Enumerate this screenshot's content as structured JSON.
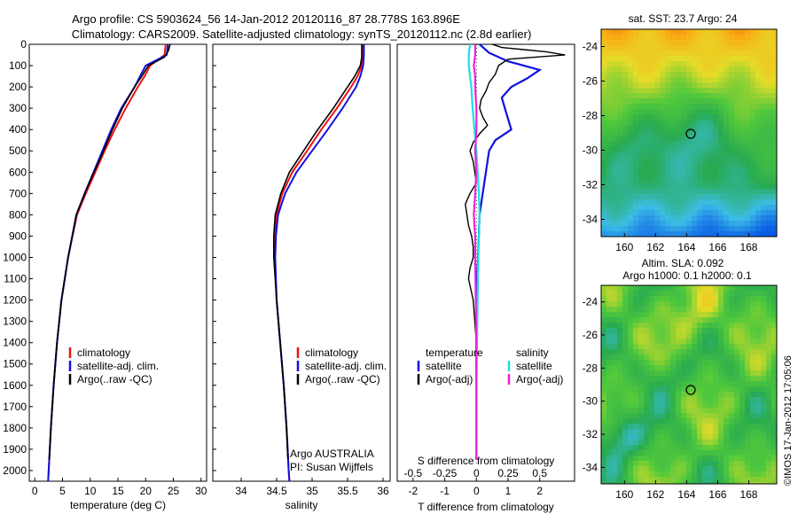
{
  "header": {
    "title_line1": "Argo profile: CS 5903624_56 14-Jan-2012 20120116_87 28.778S 163.896E",
    "title_line2": "Climatology: CARS2009. Satellite-adjusted climatology: synTS_20120112.nc (2.8d earlier)"
  },
  "footer": {
    "stamp": "©IMOS 17-Jan-2012 17:05:06"
  },
  "colors": {
    "climatology": "#ee1111",
    "satellite": "#1111dd",
    "argo": "#000000",
    "salinity_satellite": "#22dddd",
    "salinity_argo": "#ee22dd"
  },
  "chart_data": [
    {
      "id": "temperature",
      "type": "line",
      "xlabel": "temperature (deg C)",
      "xlim": [
        -1,
        31
      ],
      "ylim": [
        2050,
        0
      ],
      "xticks": [
        "0",
        "5",
        "10",
        "15",
        "20",
        "25",
        "30"
      ],
      "yticks": [
        "0",
        "100",
        "200",
        "300",
        "400",
        "500",
        "600",
        "700",
        "800",
        "900",
        "1000",
        "1100",
        "1200",
        "1300",
        "1400",
        "1500",
        "1600",
        "1700",
        "1800",
        "1900",
        "2000"
      ],
      "legend": [
        "climatology",
        "satellite-adj. clim.",
        "Argo(..raw -QC)"
      ],
      "series": [
        {
          "key": "climatology",
          "depth": [
            0,
            50,
            100,
            150,
            200,
            300,
            400,
            500,
            600,
            700,
            800,
            1000,
            1200,
            1400,
            1600,
            1800,
            2000,
            2050
          ],
          "values": [
            23.6,
            23.4,
            20.8,
            19.8,
            18.6,
            16.4,
            14.4,
            12.6,
            10.9,
            9.2,
            7.6,
            6.0,
            4.8,
            4.0,
            3.4,
            2.9,
            2.5,
            2.4
          ]
        },
        {
          "key": "satellite",
          "depth": [
            0,
            50,
            100,
            150,
            200,
            300,
            400,
            500,
            600,
            700,
            800,
            1000,
            1200,
            1400,
            1600,
            1800,
            2000,
            2050
          ],
          "values": [
            24.0,
            23.8,
            20.0,
            19.0,
            18.0,
            15.6,
            13.8,
            12.2,
            10.6,
            9.0,
            7.5,
            6.0,
            4.8,
            4.0,
            3.4,
            2.9,
            2.5,
            2.4
          ]
        },
        {
          "key": "argo",
          "depth": [
            0,
            30,
            60,
            100,
            150,
            200,
            300,
            400,
            500,
            600,
            700,
            800,
            1000,
            1200,
            1400,
            1600,
            1800,
            1950
          ],
          "values": [
            24.4,
            24.1,
            23.4,
            20.5,
            19.3,
            18.0,
            15.8,
            14.0,
            12.4,
            10.7,
            9.0,
            7.5,
            6.0,
            4.8,
            4.0,
            3.4,
            2.9,
            2.6
          ]
        }
      ]
    },
    {
      "id": "salinity",
      "type": "line",
      "xlabel": "salinity",
      "xlim": [
        33.6,
        36.1
      ],
      "ylim": [
        2050,
        0
      ],
      "xticks": [
        "34",
        "34.5",
        "35",
        "35.5",
        "36"
      ],
      "legend": [
        "climatology",
        "satellite-adj. clim.",
        "Argo(..raw -QC)"
      ],
      "annotation": [
        "Argo AUSTRALIA",
        "PI: Susan Wijffels"
      ],
      "series": [
        {
          "key": "climatology",
          "depth": [
            0,
            50,
            100,
            150,
            200,
            300,
            400,
            500,
            600,
            700,
            800,
            900,
            1000,
            1200,
            1400,
            1600,
            1800,
            2000,
            2050
          ],
          "values": [
            35.72,
            35.72,
            35.7,
            35.64,
            35.55,
            35.35,
            35.13,
            34.93,
            34.72,
            34.58,
            34.5,
            34.48,
            34.47,
            34.5,
            34.55,
            34.6,
            34.64,
            34.67,
            34.68
          ]
        },
        {
          "key": "satellite",
          "depth": [
            0,
            50,
            100,
            150,
            200,
            300,
            400,
            500,
            600,
            700,
            800,
            900,
            1000,
            1200,
            1400,
            1600,
            1800,
            2000,
            2050
          ],
          "values": [
            35.73,
            35.73,
            35.72,
            35.68,
            35.62,
            35.43,
            35.22,
            35.0,
            34.78,
            34.62,
            34.52,
            34.49,
            34.48,
            34.5,
            34.55,
            34.6,
            34.64,
            34.67,
            34.68
          ]
        },
        {
          "key": "argo",
          "depth": [
            0,
            30,
            60,
            100,
            150,
            200,
            300,
            400,
            500,
            600,
            700,
            800,
            900,
            1000,
            1200,
            1400,
            1600,
            1800,
            1950
          ],
          "values": [
            35.7,
            35.7,
            35.7,
            35.68,
            35.6,
            35.5,
            35.3,
            35.08,
            34.88,
            34.68,
            34.56,
            34.48,
            34.46,
            34.46,
            34.5,
            34.55,
            34.6,
            34.64,
            34.66
          ]
        }
      ]
    },
    {
      "id": "difference",
      "type": "line",
      "xlabel": "T difference from climatology",
      "x2label": "S difference from climatology",
      "xlim": [
        -2.5,
        3.1
      ],
      "ylim": [
        2050,
        0
      ],
      "xticks": [
        "-2",
        "-1",
        "0",
        "1",
        "2"
      ],
      "x2ticks": [
        "-0.5",
        "-0.25",
        "0",
        "0.25",
        "0.5"
      ],
      "legend_temperature": [
        "temperature",
        "satellite",
        "Argo(-adj)"
      ],
      "legend_salinity": [
        "salinity",
        "satellite",
        "Argo(-adj)"
      ],
      "series": [
        {
          "key": "satellite",
          "depth": [
            0,
            40,
            80,
            120,
            160,
            200,
            250,
            300,
            350,
            400,
            450,
            500,
            600,
            700,
            800,
            1000,
            1200,
            1400,
            1600,
            1800,
            1950
          ],
          "values": [
            0.1,
            0.4,
            1.0,
            2.0,
            1.6,
            1.1,
            0.8,
            0.9,
            1.0,
            1.1,
            0.6,
            0.4,
            0.3,
            0.2,
            0.1,
            0.05,
            0.0,
            0.0,
            0.0,
            0.0,
            0.0
          ]
        },
        {
          "key": "argo",
          "depth": [
            0,
            15,
            25,
            35,
            50,
            70,
            100,
            140,
            180,
            220,
            260,
            300,
            340,
            380,
            420,
            460,
            500,
            550,
            600,
            650,
            700,
            750,
            800,
            850,
            900,
            950,
            1000,
            1050,
            1100,
            1200,
            1300,
            1400,
            1500,
            1600,
            1700,
            1800,
            1900,
            1950
          ],
          "values": [
            0.5,
            0.8,
            1.5,
            2.2,
            2.8,
            1.0,
            0.7,
            0.6,
            0.4,
            0.3,
            0.15,
            0.1,
            0.2,
            0.35,
            0.1,
            -0.1,
            -0.2,
            -0.1,
            -0.05,
            0.0,
            -0.2,
            -0.35,
            -0.3,
            -0.25,
            -0.15,
            -0.1,
            -0.1,
            -0.2,
            -0.25,
            -0.1,
            -0.05,
            0.0,
            0.0,
            0.0,
            0.0,
            0.0,
            0.0,
            0.0
          ]
        },
        {
          "key": "salinity_satellite",
          "depth": [
            0,
            50,
            100,
            150,
            200,
            300,
            400,
            500,
            600,
            700,
            800,
            900,
            1000,
            1200,
            1400,
            1600,
            1800,
            1950
          ],
          "values": [
            -0.05,
            -0.06,
            -0.06,
            -0.05,
            -0.04,
            -0.03,
            -0.015,
            0.0,
            0.01,
            0.02,
            0.025,
            0.02,
            0.015,
            0.01,
            0.005,
            0.0,
            0.0,
            0.0
          ]
        },
        {
          "key": "salinity_argo",
          "depth": [
            0,
            50,
            100,
            150,
            200,
            300,
            400,
            500,
            600,
            700,
            800,
            900,
            1000,
            1200,
            1400,
            1600,
            1800,
            1950
          ],
          "values": [
            -0.01,
            -0.01,
            -0.02,
            -0.01,
            -0.01,
            0.0,
            0.0,
            -0.01,
            0.0,
            -0.01,
            -0.02,
            -0.01,
            -0.01,
            -0.005,
            0.0,
            0.0,
            0.0,
            0.0
          ]
        }
      ]
    },
    {
      "id": "sst_map",
      "type": "heatmap",
      "title": "sat. SST: 23.7 Argo: 24",
      "xticks": [
        "160",
        "162",
        "164",
        "166",
        "168"
      ],
      "yticks": [
        "-24",
        "-26",
        "-28",
        "-30",
        "-32",
        "-34"
      ],
      "xlim": [
        158.5,
        169.8
      ],
      "ylim": [
        -35,
        -23
      ]
    },
    {
      "id": "sla_map",
      "type": "heatmap",
      "title": "Altim. SLA: 0.092",
      "subtitle": "Argo h1000: 0.1 h2000: 0.1",
      "xticks": [
        "160",
        "162",
        "164",
        "166",
        "168"
      ],
      "yticks": [
        "-24",
        "-26",
        "-28",
        "-30",
        "-32",
        "-34"
      ],
      "xlim": [
        158.5,
        169.8
      ],
      "ylim": [
        -35,
        -23
      ]
    }
  ]
}
